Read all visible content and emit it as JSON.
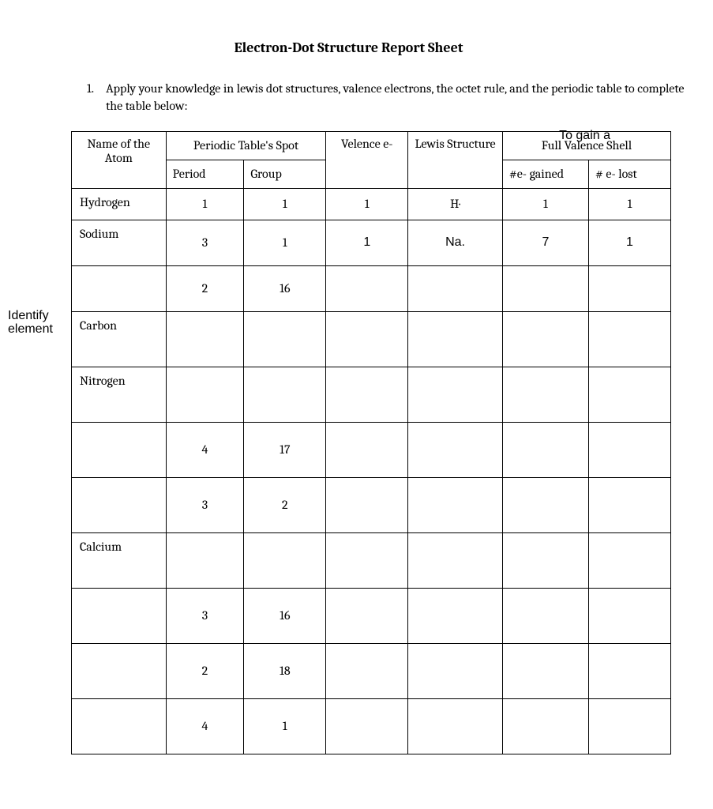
{
  "title": "Electron-Dot Structure Report Sheet",
  "instruction_number": "1.",
  "instruction_text": "Apply your knowledge in lewis dot structures, valence electrons, the octet rule, and the periodic table to complete the table below:",
  "gain_label": "To gain a",
  "side_label_line1": "Identify",
  "side_label_line2": "element",
  "headers": {
    "atom": "Name of the Atom",
    "spot": "Periodic Table's Spot",
    "period": "Period",
    "group": "Group",
    "valence": "Velence e-",
    "lewis": "Lewis Structure",
    "full_shell": "Full Valence Shell",
    "gained": "#e- gained",
    "lost": "# e- lost"
  },
  "rows": [
    {
      "atom": "Hydrogen",
      "period": "1",
      "group": "1",
      "valence": "1",
      "lewis": "H·",
      "gained": "1",
      "lost": "1",
      "height": "short"
    },
    {
      "atom": "Sodium",
      "period": "3",
      "group": "1",
      "valence": "1",
      "lewis": "Na.",
      "gained": "7",
      "lost": "1",
      "height": "med",
      "arial_valence": true,
      "arial_lewis": true,
      "arial_gained": true,
      "arial_lost": true
    },
    {
      "atom": "",
      "period": "2",
      "group": "16",
      "valence": "",
      "lewis": "",
      "gained": "",
      "lost": "",
      "height": "med"
    },
    {
      "atom": "Carbon",
      "period": "",
      "group": "",
      "valence": "",
      "lewis": "",
      "gained": "",
      "lost": "",
      "height": "tall"
    },
    {
      "atom": "Nitrogen",
      "period": "",
      "group": "",
      "valence": "",
      "lewis": "",
      "gained": "",
      "lost": "",
      "height": "tall"
    },
    {
      "atom": "",
      "period": "4",
      "group": "17",
      "valence": "",
      "lewis": "",
      "gained": "",
      "lost": "",
      "height": "tall"
    },
    {
      "atom": "",
      "period": "3",
      "group": "2",
      "valence": "",
      "lewis": "",
      "gained": "",
      "lost": "",
      "height": "tall"
    },
    {
      "atom": "Calcium",
      "period": "",
      "group": "",
      "valence": "",
      "lewis": "",
      "gained": "",
      "lost": "",
      "height": "tall"
    },
    {
      "atom": "",
      "period": "3",
      "group": "16",
      "valence": "",
      "lewis": "",
      "gained": "",
      "lost": "",
      "height": "tall"
    },
    {
      "atom": "",
      "period": "2",
      "group": "18",
      "valence": "",
      "lewis": "",
      "gained": "",
      "lost": "",
      "height": "tall"
    },
    {
      "atom": "",
      "period": "4",
      "group": "1",
      "valence": "",
      "lewis": "",
      "gained": "",
      "lost": "",
      "height": "tall"
    }
  ]
}
